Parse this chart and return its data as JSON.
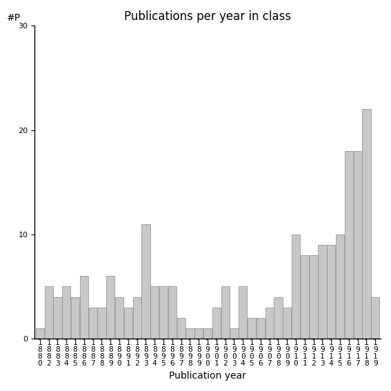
{
  "title": "Publications per year in class",
  "xlabel": "Publication year",
  "ylabel_text": "#P",
  "bar_color": "#c8c8c8",
  "edge_color": "#888888",
  "ylim": [
    0,
    30
  ],
  "yticks": [
    0,
    10,
    20,
    30
  ],
  "years": [
    1880,
    1882,
    1883,
    1884,
    1885,
    1886,
    1887,
    1888,
    1889,
    1890,
    1891,
    1892,
    1893,
    1894,
    1895,
    1896,
    1897,
    1898,
    1899,
    1900,
    1901,
    1902,
    1903,
    1904,
    1905,
    1906,
    1907,
    1908,
    1909,
    1910,
    1911,
    1912,
    1913,
    1914,
    1915,
    1916,
    1917,
    1918,
    1919
  ],
  "values": [
    1,
    5,
    4,
    5,
    4,
    6,
    3,
    3,
    6,
    4,
    3,
    4,
    11,
    5,
    5,
    5,
    2,
    1,
    1,
    1,
    3,
    5,
    1,
    5,
    2,
    2,
    3,
    4,
    3,
    10,
    8,
    8,
    9,
    9,
    10,
    18,
    18,
    22,
    4
  ],
  "background_color": "#ffffff",
  "title_fontsize": 12,
  "label_fontsize": 10,
  "tick_fontsize": 8
}
